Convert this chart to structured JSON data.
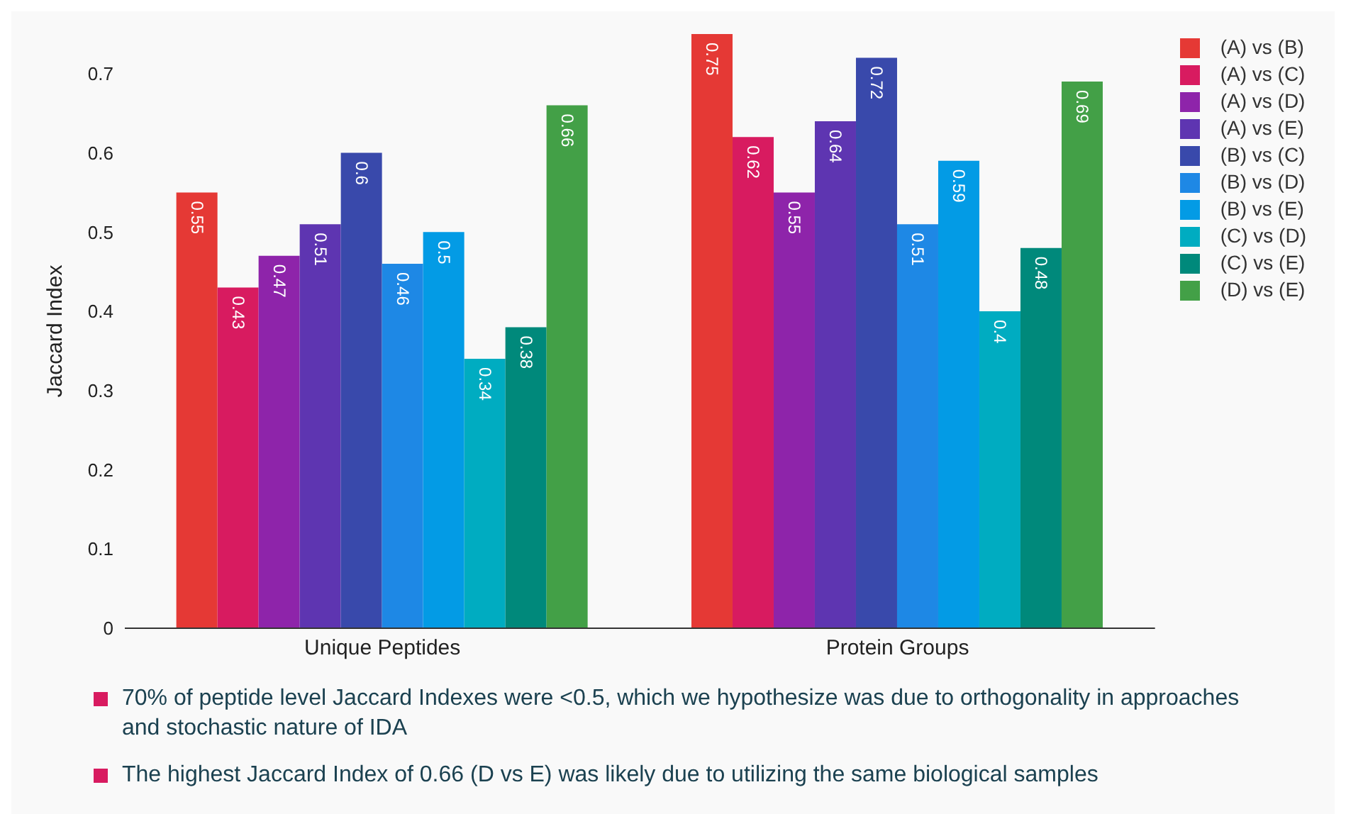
{
  "chart_data": {
    "type": "bar",
    "ylabel": "Jaccard Index",
    "categories": [
      "Unique Peptides",
      "Protein Groups"
    ],
    "series": [
      {
        "name": "(A) vs (B)",
        "color": "#e53935",
        "values": [
          0.55,
          0.75
        ]
      },
      {
        "name": "(A) vs (C)",
        "color": "#d81b60",
        "values": [
          0.43,
          0.62
        ]
      },
      {
        "name": "(A) vs (D)",
        "color": "#8e24aa",
        "values": [
          0.47,
          0.55
        ]
      },
      {
        "name": "(A) vs (E)",
        "color": "#5e35b1",
        "values": [
          0.51,
          0.64
        ]
      },
      {
        "name": "(B) vs (C)",
        "color": "#3949ab",
        "values": [
          0.6,
          0.72
        ]
      },
      {
        "name": "(B) vs (D)",
        "color": "#1e88e5",
        "values": [
          0.46,
          0.51
        ]
      },
      {
        "name": "(B) vs (E)",
        "color": "#039be5",
        "values": [
          0.5,
          0.59
        ]
      },
      {
        "name": "(C) vs (D)",
        "color": "#00acc1",
        "values": [
          0.34,
          0.4
        ]
      },
      {
        "name": "(C) vs (E)",
        "color": "#00897b",
        "values": [
          0.38,
          0.48
        ]
      },
      {
        "name": "(D) vs (E)",
        "color": "#43a047",
        "values": [
          0.66,
          0.69
        ]
      }
    ],
    "ylim": [
      0,
      0.75
    ],
    "yticks": [
      0,
      0.1,
      0.2,
      0.3,
      0.4,
      0.5,
      0.6,
      0.7
    ],
    "grid": false,
    "legend": "top right",
    "data_labels": true,
    "annotations": [
      "70% of peptide level Jaccard Indexes were <0.5, which we hypothesize was due to orthogonality in approaches and stochastic nature of IDA",
      "The highest Jaccard Index of 0.66 (D vs E) was likely due to utilizing the same biological samples"
    ]
  }
}
